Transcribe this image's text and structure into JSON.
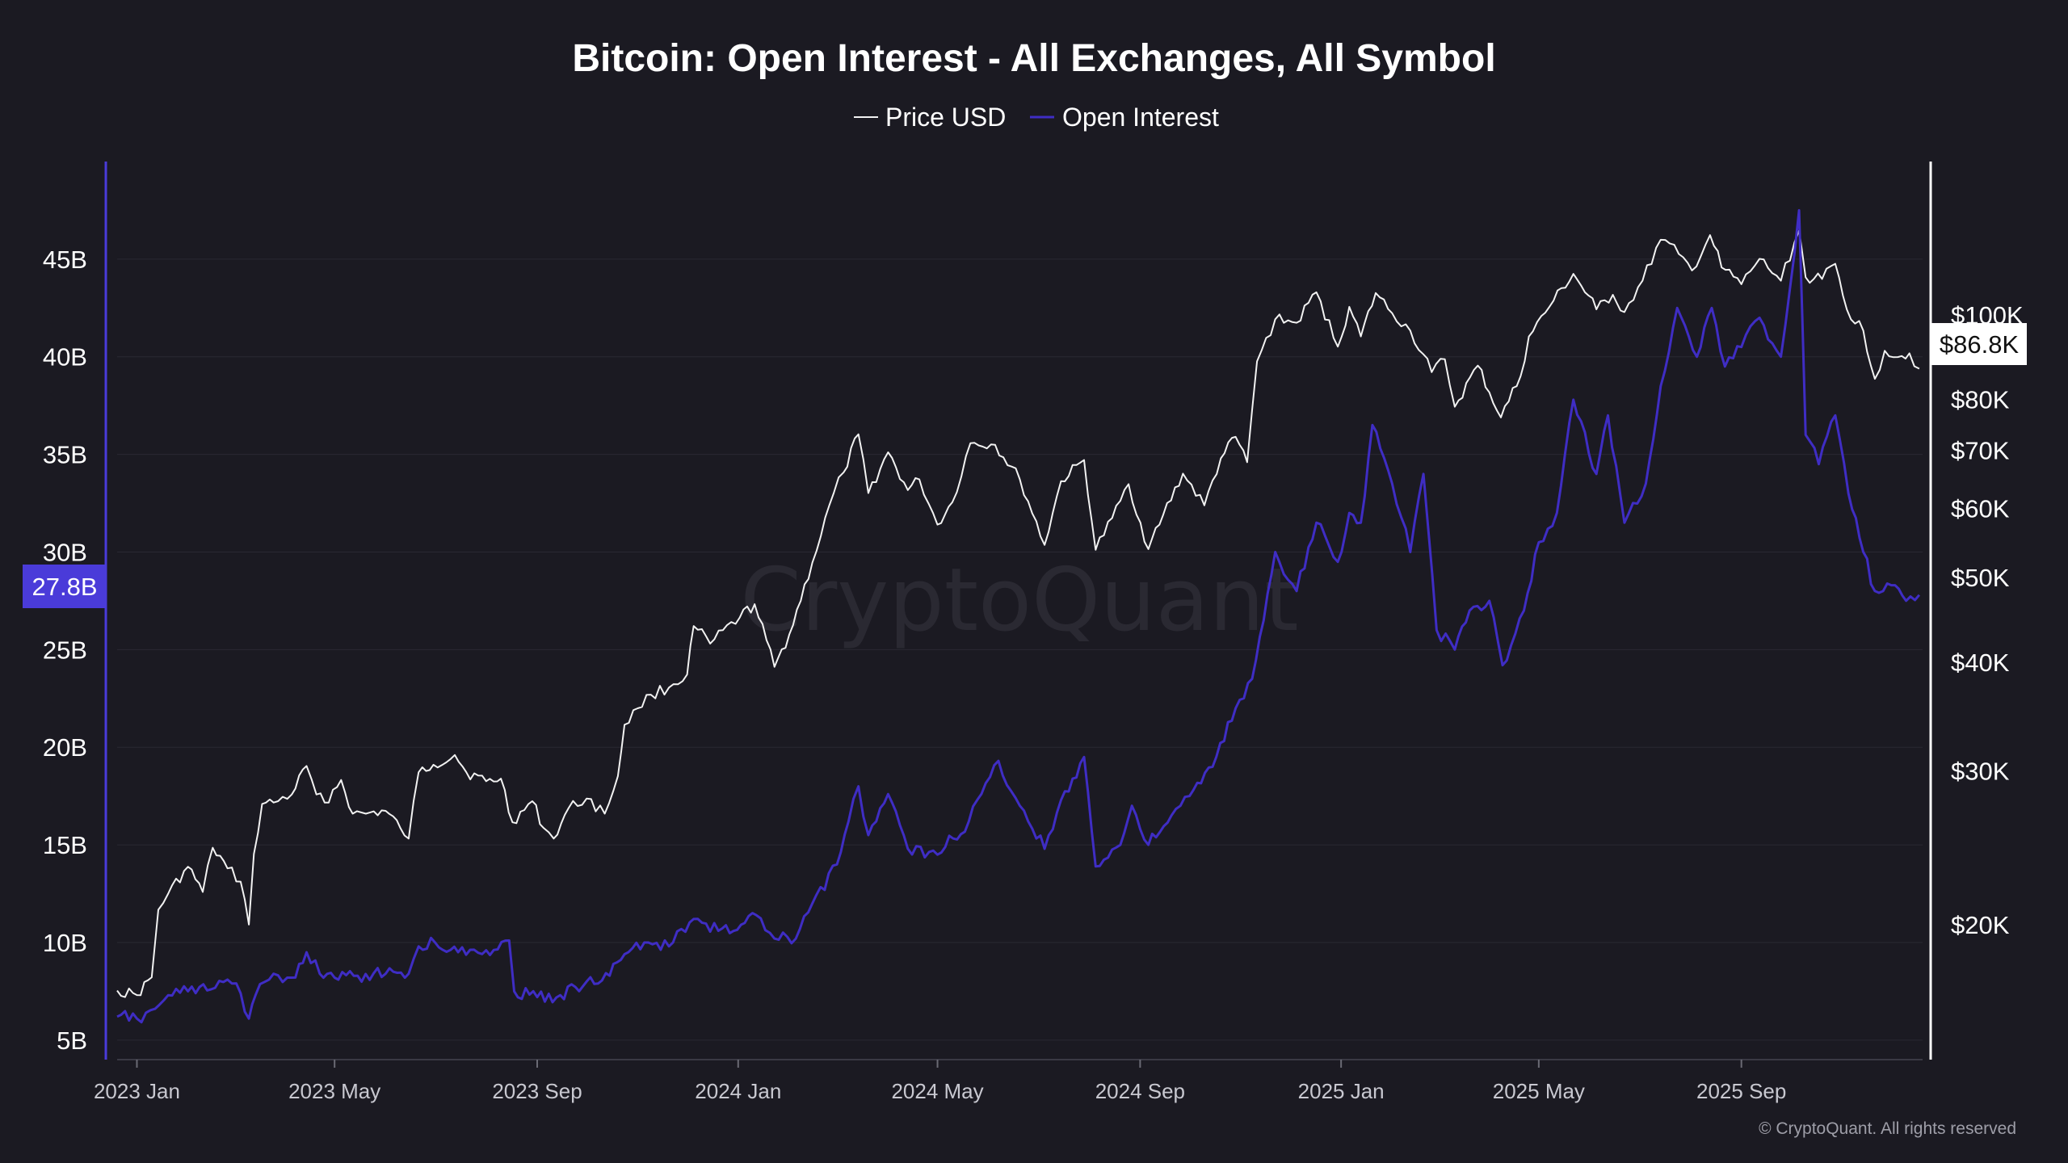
{
  "watermark": "CryptoQuant",
  "copyright": "© CryptoQuant. All rights reserved",
  "colors": {
    "background": "#1b1a22",
    "price_line": "#f2f2f2",
    "oi_line": "#3f2dc4",
    "oi_axis": "#4a3bd9",
    "price_axis": "#ffffff",
    "grid": "#2a2933"
  },
  "chart_data": {
    "type": "line",
    "title": "Bitcoin: Open Interest - All Exchanges, All Symbol",
    "legend": {
      "placement": "top-center"
    },
    "grid": true,
    "x_range": [
      "2022-12-20",
      "2025-12-20"
    ],
    "x_ticks": [
      {
        "date": "2023-01-01",
        "label": "2023 Jan"
      },
      {
        "date": "2023-05-01",
        "label": "2023 May"
      },
      {
        "date": "2023-09-01",
        "label": "2023 Sep"
      },
      {
        "date": "2024-01-01",
        "label": "2024 Jan"
      },
      {
        "date": "2024-05-01",
        "label": "2024 May"
      },
      {
        "date": "2024-09-01",
        "label": "2024 Sep"
      },
      {
        "date": "2025-01-01",
        "label": "2025 Jan"
      },
      {
        "date": "2025-05-01",
        "label": "2025 May"
      },
      {
        "date": "2025-09-01",
        "label": "2025 Sep"
      }
    ],
    "left_axis": {
      "series": "Open Interest",
      "scale": "linear",
      "range": [
        4000000000,
        50000000000
      ],
      "ticks": [
        {
          "value": 5000000000,
          "label": "5B"
        },
        {
          "value": 10000000000,
          "label": "10B"
        },
        {
          "value": 15000000000,
          "label": "15B"
        },
        {
          "value": 20000000000,
          "label": "20B"
        },
        {
          "value": 25000000000,
          "label": "25B"
        },
        {
          "value": 30000000000,
          "label": "30B"
        },
        {
          "value": 35000000000,
          "label": "35B"
        },
        {
          "value": 40000000000,
          "label": "40B"
        },
        {
          "value": 45000000000,
          "label": "45B"
        }
      ],
      "last_value_label": "27.8B",
      "last_value": 27800000000
    },
    "right_axis": {
      "series": "Price USD",
      "scale": "log",
      "range": [
        14000,
        150000
      ],
      "ticks": [
        {
          "value": 20000,
          "label": "$20K"
        },
        {
          "value": 30000,
          "label": "$30K"
        },
        {
          "value": 40000,
          "label": "$40K"
        },
        {
          "value": 50000,
          "label": "$50K"
        },
        {
          "value": 60000,
          "label": "$60K"
        },
        {
          "value": 70000,
          "label": "$70K"
        },
        {
          "value": 80000,
          "label": "$80K"
        },
        {
          "value": 100000,
          "label": "$100K"
        }
      ],
      "last_value_label": "$86.8K",
      "last_value": 86800
    },
    "series": [
      {
        "name": "Price USD",
        "axis": "right",
        "points": [
          [
            "2022-12-20",
            16800
          ],
          [
            "2023-01-01",
            16600
          ],
          [
            "2023-01-10",
            17400
          ],
          [
            "2023-01-14",
            20800
          ],
          [
            "2023-01-20",
            21700
          ],
          [
            "2023-02-01",
            23300
          ],
          [
            "2023-02-10",
            21800
          ],
          [
            "2023-02-16",
            24500
          ],
          [
            "2023-02-25",
            23200
          ],
          [
            "2023-03-05",
            22400
          ],
          [
            "2023-03-10",
            20000
          ],
          [
            "2023-03-13",
            24100
          ],
          [
            "2023-03-18",
            27500
          ],
          [
            "2023-03-25",
            27600
          ],
          [
            "2023-04-05",
            28200
          ],
          [
            "2023-04-14",
            30400
          ],
          [
            "2023-04-20",
            28200
          ],
          [
            "2023-04-25",
            27600
          ],
          [
            "2023-05-05",
            29300
          ],
          [
            "2023-05-12",
            26800
          ],
          [
            "2023-05-20",
            26800
          ],
          [
            "2023-06-01",
            27000
          ],
          [
            "2023-06-10",
            25800
          ],
          [
            "2023-06-15",
            25100
          ],
          [
            "2023-06-21",
            29900
          ],
          [
            "2023-06-30",
            30500
          ],
          [
            "2023-07-13",
            31300
          ],
          [
            "2023-07-20",
            29900
          ],
          [
            "2023-08-01",
            29200
          ],
          [
            "2023-08-10",
            29400
          ],
          [
            "2023-08-17",
            26200
          ],
          [
            "2023-08-29",
            27700
          ],
          [
            "2023-09-05",
            25800
          ],
          [
            "2023-09-11",
            25100
          ],
          [
            "2023-09-20",
            27200
          ],
          [
            "2023-10-01",
            27900
          ],
          [
            "2023-10-12",
            26800
          ],
          [
            "2023-10-20",
            29600
          ],
          [
            "2023-10-24",
            33900
          ],
          [
            "2023-11-01",
            35400
          ],
          [
            "2023-11-09",
            36700
          ],
          [
            "2023-11-20",
            37400
          ],
          [
            "2023-12-01",
            38700
          ],
          [
            "2023-12-05",
            44000
          ],
          [
            "2023-12-15",
            42000
          ],
          [
            "2024-01-02",
            45000
          ],
          [
            "2024-01-11",
            46600
          ],
          [
            "2024-01-23",
            39500
          ],
          [
            "2024-02-01",
            43000
          ],
          [
            "2024-02-15",
            52000
          ],
          [
            "2024-02-28",
            62500
          ],
          [
            "2024-03-05",
            66000
          ],
          [
            "2024-03-14",
            73000
          ],
          [
            "2024-03-20",
            62500
          ],
          [
            "2024-04-01",
            69600
          ],
          [
            "2024-04-13",
            63000
          ],
          [
            "2024-04-20",
            64800
          ],
          [
            "2024-05-01",
            57500
          ],
          [
            "2024-05-10",
            61000
          ],
          [
            "2024-05-21",
            71300
          ],
          [
            "2024-06-05",
            71000
          ],
          [
            "2024-06-20",
            64800
          ],
          [
            "2024-07-05",
            54500
          ],
          [
            "2024-07-15",
            64500
          ],
          [
            "2024-07-29",
            68200
          ],
          [
            "2024-08-05",
            53800
          ],
          [
            "2024-08-15",
            58500
          ],
          [
            "2024-08-25",
            64000
          ],
          [
            "2024-09-06",
            53900
          ],
          [
            "2024-09-15",
            59000
          ],
          [
            "2024-09-27",
            65800
          ],
          [
            "2024-10-10",
            60500
          ],
          [
            "2024-10-20",
            68500
          ],
          [
            "2024-10-29",
            72500
          ],
          [
            "2024-11-05",
            67800
          ],
          [
            "2024-11-11",
            88500
          ],
          [
            "2024-11-22",
            98900
          ],
          [
            "2024-12-05",
            98000
          ],
          [
            "2024-12-17",
            106200
          ],
          [
            "2024-12-30",
            92000
          ],
          [
            "2025-01-06",
            102200
          ],
          [
            "2025-01-13",
            94500
          ],
          [
            "2025-01-22",
            106000
          ],
          [
            "2025-02-01",
            100500
          ],
          [
            "2025-02-12",
            96000
          ],
          [
            "2025-02-25",
            86000
          ],
          [
            "2025-03-05",
            89000
          ],
          [
            "2025-03-11",
            78500
          ],
          [
            "2025-03-25",
            87500
          ],
          [
            "2025-04-08",
            76300
          ],
          [
            "2025-04-20",
            85100
          ],
          [
            "2025-04-25",
            94500
          ],
          [
            "2025-05-10",
            103900
          ],
          [
            "2025-05-22",
            111500
          ],
          [
            "2025-06-05",
            101500
          ],
          [
            "2025-06-15",
            105500
          ],
          [
            "2025-06-22",
            100800
          ],
          [
            "2025-07-03",
            109500
          ],
          [
            "2025-07-14",
            122000
          ],
          [
            "2025-07-25",
            117500
          ],
          [
            "2025-08-02",
            112500
          ],
          [
            "2025-08-13",
            123500
          ],
          [
            "2025-08-20",
            113400
          ],
          [
            "2025-09-01",
            108500
          ],
          [
            "2025-09-12",
            116000
          ],
          [
            "2025-09-25",
            109500
          ],
          [
            "2025-10-06",
            125000
          ],
          [
            "2025-10-10",
            110500
          ],
          [
            "2025-10-20",
            110000
          ],
          [
            "2025-10-28",
            114500
          ],
          [
            "2025-11-04",
            101500
          ],
          [
            "2025-11-14",
            96000
          ],
          [
            "2025-11-21",
            84500
          ],
          [
            "2025-11-27",
            91000
          ],
          [
            "2025-12-05",
            89500
          ],
          [
            "2025-12-12",
            90400
          ],
          [
            "2025-12-18",
            86800
          ]
        ]
      },
      {
        "name": "Open Interest",
        "axis": "left",
        "points": [
          [
            "2022-12-20",
            6200000000
          ],
          [
            "2023-01-01",
            6100000000
          ],
          [
            "2023-01-12",
            6600000000
          ],
          [
            "2023-01-20",
            7300000000
          ],
          [
            "2023-02-01",
            7500000000
          ],
          [
            "2023-02-15",
            7600000000
          ],
          [
            "2023-02-25",
            8100000000
          ],
          [
            "2023-03-05",
            7400000000
          ],
          [
            "2023-03-10",
            6100000000
          ],
          [
            "2023-03-14",
            7300000000
          ],
          [
            "2023-03-25",
            8400000000
          ],
          [
            "2023-04-05",
            8200000000
          ],
          [
            "2023-04-14",
            9500000000
          ],
          [
            "2023-04-22",
            8400000000
          ],
          [
            "2023-05-01",
            8200000000
          ],
          [
            "2023-05-15",
            8300000000
          ],
          [
            "2023-06-01",
            8400000000
          ],
          [
            "2023-06-15",
            8400000000
          ],
          [
            "2023-06-21",
            9800000000
          ],
          [
            "2023-07-01",
            10000000000
          ],
          [
            "2023-07-15",
            9500000000
          ],
          [
            "2023-08-01",
            9600000000
          ],
          [
            "2023-08-15",
            10100000000
          ],
          [
            "2023-08-18",
            7500000000
          ],
          [
            "2023-09-01",
            7200000000
          ],
          [
            "2023-09-15",
            7300000000
          ],
          [
            "2023-10-01",
            8000000000
          ],
          [
            "2023-10-15",
            8300000000
          ],
          [
            "2023-10-24",
            9400000000
          ],
          [
            "2023-11-05",
            10000000000
          ],
          [
            "2023-11-20",
            9800000000
          ],
          [
            "2023-12-05",
            11200000000
          ],
          [
            "2023-12-20",
            10600000000
          ],
          [
            "2024-01-05",
            11000000000
          ],
          [
            "2024-01-12",
            11400000000
          ],
          [
            "2024-01-23",
            10200000000
          ],
          [
            "2024-02-05",
            10200000000
          ],
          [
            "2024-02-15",
            12000000000
          ],
          [
            "2024-03-01",
            14000000000
          ],
          [
            "2024-03-08",
            16200000000
          ],
          [
            "2024-03-14",
            18000000000
          ],
          [
            "2024-03-20",
            15500000000
          ],
          [
            "2024-04-01",
            17600000000
          ],
          [
            "2024-04-13",
            14800000000
          ],
          [
            "2024-05-01",
            14500000000
          ],
          [
            "2024-05-20",
            16200000000
          ],
          [
            "2024-06-07",
            19300000000
          ],
          [
            "2024-06-20",
            17000000000
          ],
          [
            "2024-07-05",
            14800000000
          ],
          [
            "2024-07-15",
            17300000000
          ],
          [
            "2024-07-29",
            19500000000
          ],
          [
            "2024-08-05",
            13900000000
          ],
          [
            "2024-08-20",
            15000000000
          ],
          [
            "2024-08-27",
            17000000000
          ],
          [
            "2024-09-06",
            15000000000
          ],
          [
            "2024-09-20",
            16500000000
          ],
          [
            "2024-10-01",
            17500000000
          ],
          [
            "2024-10-15",
            19000000000
          ],
          [
            "2024-10-29",
            22000000000
          ],
          [
            "2024-11-08",
            23500000000
          ],
          [
            "2024-11-15",
            26500000000
          ],
          [
            "2024-11-22",
            30000000000
          ],
          [
            "2024-12-05",
            28000000000
          ],
          [
            "2024-12-17",
            31500000000
          ],
          [
            "2024-12-30",
            29500000000
          ],
          [
            "2025-01-06",
            32000000000
          ],
          [
            "2025-01-13",
            31500000000
          ],
          [
            "2025-01-20",
            36500000000
          ],
          [
            "2025-02-01",
            33500000000
          ],
          [
            "2025-02-12",
            30000000000
          ],
          [
            "2025-02-20",
            34000000000
          ],
          [
            "2025-02-28",
            26000000000
          ],
          [
            "2025-03-11",
            25000000000
          ],
          [
            "2025-03-20",
            27000000000
          ],
          [
            "2025-04-01",
            27500000000
          ],
          [
            "2025-04-09",
            24200000000
          ],
          [
            "2025-04-22",
            27000000000
          ],
          [
            "2025-05-01",
            30500000000
          ],
          [
            "2025-05-12",
            32000000000
          ],
          [
            "2025-05-22",
            37800000000
          ],
          [
            "2025-06-05",
            34000000000
          ],
          [
            "2025-06-12",
            37000000000
          ],
          [
            "2025-06-22",
            31500000000
          ],
          [
            "2025-07-05",
            33500000000
          ],
          [
            "2025-07-14",
            38500000000
          ],
          [
            "2025-07-24",
            42500000000
          ],
          [
            "2025-08-05",
            40000000000
          ],
          [
            "2025-08-14",
            42500000000
          ],
          [
            "2025-08-22",
            39500000000
          ],
          [
            "2025-09-01",
            40500000000
          ],
          [
            "2025-09-12",
            42000000000
          ],
          [
            "2025-09-25",
            40000000000
          ],
          [
            "2025-10-06",
            47500000000
          ],
          [
            "2025-10-10",
            36000000000
          ],
          [
            "2025-10-18",
            34500000000
          ],
          [
            "2025-10-28",
            37000000000
          ],
          [
            "2025-11-05",
            33000000000
          ],
          [
            "2025-11-14",
            30000000000
          ],
          [
            "2025-11-21",
            28000000000
          ],
          [
            "2025-12-01",
            28300000000
          ],
          [
            "2025-12-10",
            27500000000
          ],
          [
            "2025-12-18",
            27800000000
          ]
        ]
      }
    ]
  }
}
